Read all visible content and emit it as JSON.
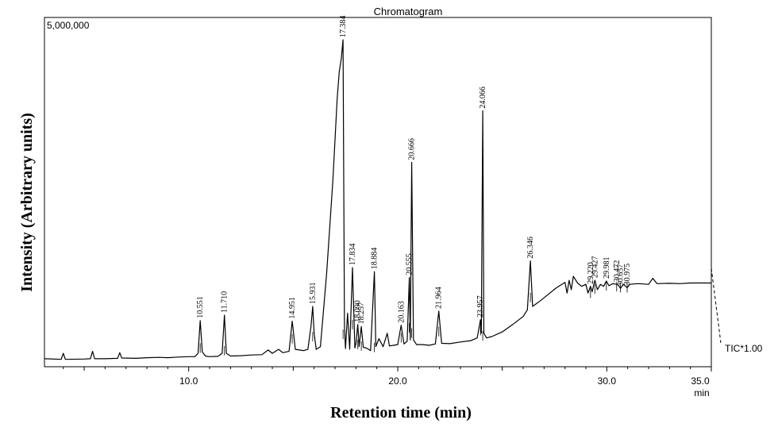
{
  "chart_data": {
    "type": "line",
    "title": "Chromatogram",
    "xlabel": "Retention time (min)",
    "ylabel": "Intensity (Arbitrary units)",
    "x_unit": "min",
    "y_max_label": "5,000,000",
    "trace_label": "TIC*1.00",
    "xlim": [
      3.1,
      35.0
    ],
    "ylim": [
      0,
      5000000
    ],
    "grid": false,
    "x_ticks": [
      {
        "value": 10,
        "label": "10.0"
      },
      {
        "value": 20,
        "label": "20.0"
      },
      {
        "value": 30,
        "label": "30.0"
      },
      {
        "value": 35,
        "label": "35.0"
      }
    ],
    "peak_labels": [
      {
        "rt": 10.551,
        "label": "10.551",
        "height": 690000
      },
      {
        "rt": 11.71,
        "label": "11.710",
        "height": 770000
      },
      {
        "rt": 14.951,
        "label": "14.951",
        "height": 680000
      },
      {
        "rt": 15.931,
        "label": "15.931",
        "height": 900000
      },
      {
        "rt": 17.384,
        "label": "17.384",
        "height": 4880000
      },
      {
        "rt": 17.834,
        "label": "17.834",
        "height": 1480000
      },
      {
        "rt": 18.09,
        "label": "18.090",
        "height": 630000
      },
      {
        "rt": 18.257,
        "label": "18.257",
        "height": 600000
      },
      {
        "rt": 18.884,
        "label": "18.884",
        "height": 1420000
      },
      {
        "rt": 20.163,
        "label": "20.163",
        "height": 620000
      },
      {
        "rt": 20.555,
        "label": "20.555",
        "height": 1330000
      },
      {
        "rt": 20.666,
        "label": "20.666",
        "height": 3050000
      },
      {
        "rt": 21.964,
        "label": "21.964",
        "height": 830000
      },
      {
        "rt": 23.957,
        "label": "23.957",
        "height": 700000
      },
      {
        "rt": 24.066,
        "label": "24.066",
        "height": 3820000
      },
      {
        "rt": 26.346,
        "label": "26.346",
        "height": 1580000
      },
      {
        "rt": 29.22,
        "label": "29.220",
        "height": 1200000
      },
      {
        "rt": 29.427,
        "label": "29.427",
        "height": 1290000
      },
      {
        "rt": 29.981,
        "label": "29.981",
        "height": 1280000
      },
      {
        "rt": 30.472,
        "label": "30.472",
        "height": 1230000
      },
      {
        "rt": 30.657,
        "label": "30.657",
        "height": 1170000
      },
      {
        "rt": 30.975,
        "label": "30.975",
        "height": 1180000
      }
    ],
    "series": [
      {
        "x": [
          3.1,
          3.9,
          4.0,
          4.1,
          5.0,
          5.3,
          5.4,
          5.5,
          6.0,
          6.6,
          6.7,
          6.8,
          7.5,
          8.0,
          8.6,
          9.0,
          9.5,
          10.0,
          10.3,
          10.45,
          10.55,
          10.65,
          10.8,
          11.0,
          11.4,
          11.6,
          11.71,
          11.8,
          12.0,
          12.5,
          13.0,
          13.5,
          13.8,
          14.0,
          14.3,
          14.5,
          14.8,
          14.951,
          15.1,
          15.5,
          15.7,
          15.85,
          15.931,
          16.0,
          16.1,
          16.3,
          16.6,
          16.9,
          17.1,
          17.2,
          17.3,
          17.384,
          17.45,
          17.5,
          17.6,
          17.7,
          17.834,
          17.95,
          18.0,
          18.09,
          18.15,
          18.257,
          18.35,
          18.5,
          18.7,
          18.884,
          18.95,
          19.1,
          19.3,
          19.5,
          19.6,
          19.8,
          20.0,
          20.163,
          20.3,
          20.45,
          20.555,
          20.6,
          20.666,
          20.75,
          20.9,
          21.2,
          21.5,
          21.8,
          21.964,
          22.1,
          22.5,
          23.0,
          23.5,
          23.8,
          23.957,
          24.0,
          24.066,
          24.12,
          24.25,
          24.5,
          25.0,
          25.5,
          26.0,
          26.2,
          26.346,
          26.45,
          26.8,
          27.2,
          27.6,
          28.0,
          28.1,
          28.2,
          28.3,
          28.4,
          28.6,
          28.8,
          29.0,
          29.1,
          29.22,
          29.3,
          29.427,
          29.55,
          29.7,
          29.85,
          29.981,
          30.1,
          30.3,
          30.472,
          30.55,
          30.657,
          30.8,
          30.975,
          31.1,
          31.5,
          32.0,
          32.2,
          32.4,
          33.0,
          33.5,
          34.0,
          34.5,
          35.0
        ],
        "y": [
          120000,
          110000,
          200000,
          110000,
          115000,
          120000,
          230000,
          120000,
          120000,
          125000,
          210000,
          130000,
          125000,
          135000,
          140000,
          135000,
          145000,
          150000,
          150000,
          200000,
          690000,
          220000,
          160000,
          150000,
          155000,
          200000,
          770000,
          200000,
          160000,
          165000,
          175000,
          180000,
          250000,
          200000,
          260000,
          210000,
          230000,
          680000,
          260000,
          240000,
          260000,
          600000,
          900000,
          500000,
          260000,
          300000,
          1400000,
          2800000,
          4000000,
          4400000,
          4600000,
          4880000,
          600000,
          270000,
          800000,
          260000,
          1480000,
          280000,
          350000,
          630000,
          300000,
          600000,
          290000,
          280000,
          240000,
          1420000,
          300000,
          420000,
          300000,
          500000,
          310000,
          320000,
          330000,
          620000,
          340000,
          380000,
          1330000,
          400000,
          3050000,
          400000,
          330000,
          330000,
          320000,
          340000,
          830000,
          350000,
          345000,
          370000,
          390000,
          430000,
          700000,
          500000,
          3820000,
          500000,
          430000,
          450000,
          520000,
          630000,
          750000,
          850000,
          1580000,
          900000,
          980000,
          1080000,
          1180000,
          1260000,
          1100000,
          1290000,
          1150000,
          1350000,
          1250000,
          1200000,
          1230000,
          1100000,
          1200000,
          1120000,
          1290000,
          1150000,
          1230000,
          1200000,
          1280000,
          1210000,
          1240000,
          1230000,
          1220000,
          1170000,
          1230000,
          1180000,
          1230000,
          1240000,
          1230000,
          1320000,
          1240000,
          1245000,
          1240000,
          1250000,
          1250000,
          1250000
        ]
      }
    ]
  }
}
